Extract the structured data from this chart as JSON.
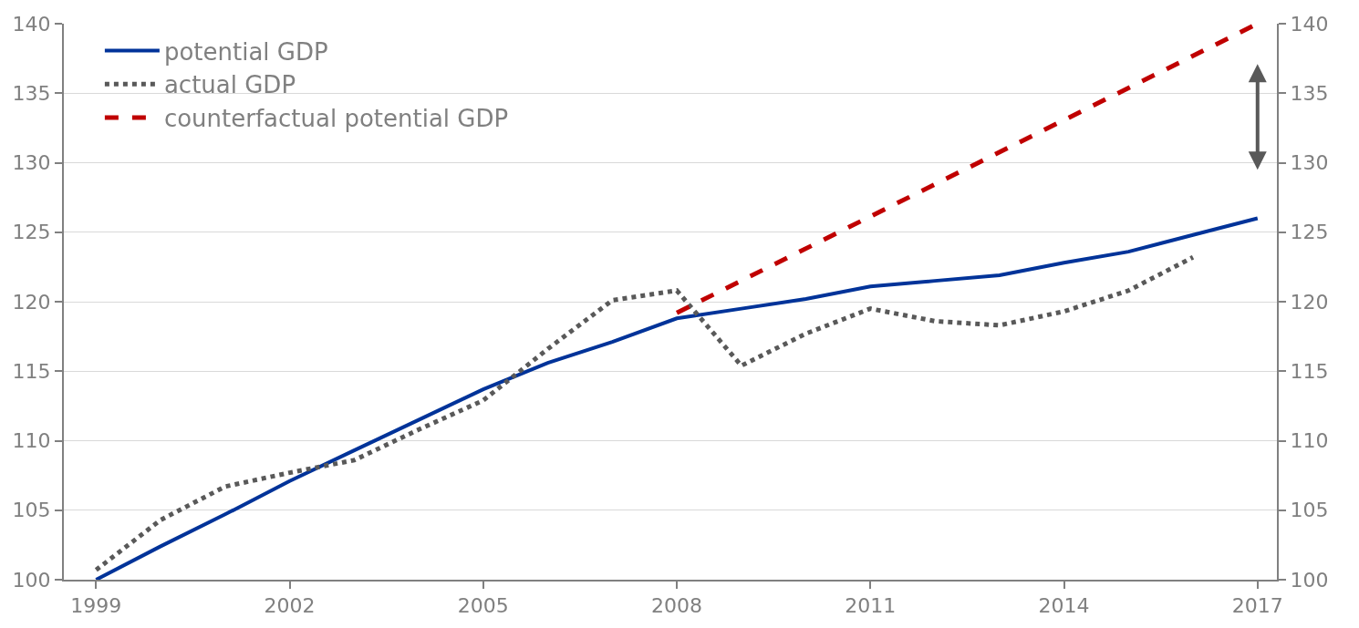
{
  "chart_data": {
    "type": "line",
    "x": [
      1999,
      2000,
      2001,
      2002,
      2003,
      2004,
      2005,
      2006,
      2007,
      2008,
      2009,
      2010,
      2011,
      2012,
      2013,
      2014,
      2015,
      2016,
      2017
    ],
    "series": [
      {
        "name": "potential GDP",
        "color": "#003399",
        "line_style": "solid",
        "values": [
          100,
          102.4,
          104.7,
          107.1,
          109.3,
          111.5,
          113.7,
          115.6,
          117.1,
          118.8,
          119.5,
          120.2,
          121.1,
          121.5,
          121.9,
          122.8,
          123.6,
          124.8,
          126.0
        ]
      },
      {
        "name": "actual GDP",
        "color": "#595959",
        "line_style": "dotted",
        "x": [
          1999,
          2000,
          2001,
          2002,
          2003,
          2004,
          2005,
          2006,
          2007,
          2008,
          2009,
          2010,
          2011,
          2012,
          2013,
          2014,
          2015,
          2016
        ],
        "values": [
          100.7,
          104.3,
          106.7,
          107.7,
          108.6,
          110.8,
          112.9,
          116.6,
          120.1,
          120.8,
          115.4,
          117.7,
          119.5,
          118.6,
          118.3,
          119.3,
          120.8,
          123.2
        ]
      },
      {
        "name": "counterfactual potential GDP",
        "color": "#c00000",
        "line_style": "dashed",
        "x": [
          2008,
          2017
        ],
        "values": [
          119.2,
          140
        ]
      }
    ],
    "xlim": [
      1998.5,
      2017.3
    ],
    "xticks": [
      1999,
      2002,
      2005,
      2008,
      2011,
      2014,
      2017
    ],
    "ylim": [
      100,
      140
    ],
    "yticks": [
      100,
      105,
      110,
      115,
      120,
      125,
      130,
      135,
      140
    ],
    "y2lim": [
      100,
      140
    ],
    "y2ticks": [
      100,
      105,
      110,
      115,
      120,
      125,
      130,
      135,
      140
    ],
    "grid": "y",
    "legend": "top left",
    "marker": "none"
  }
}
